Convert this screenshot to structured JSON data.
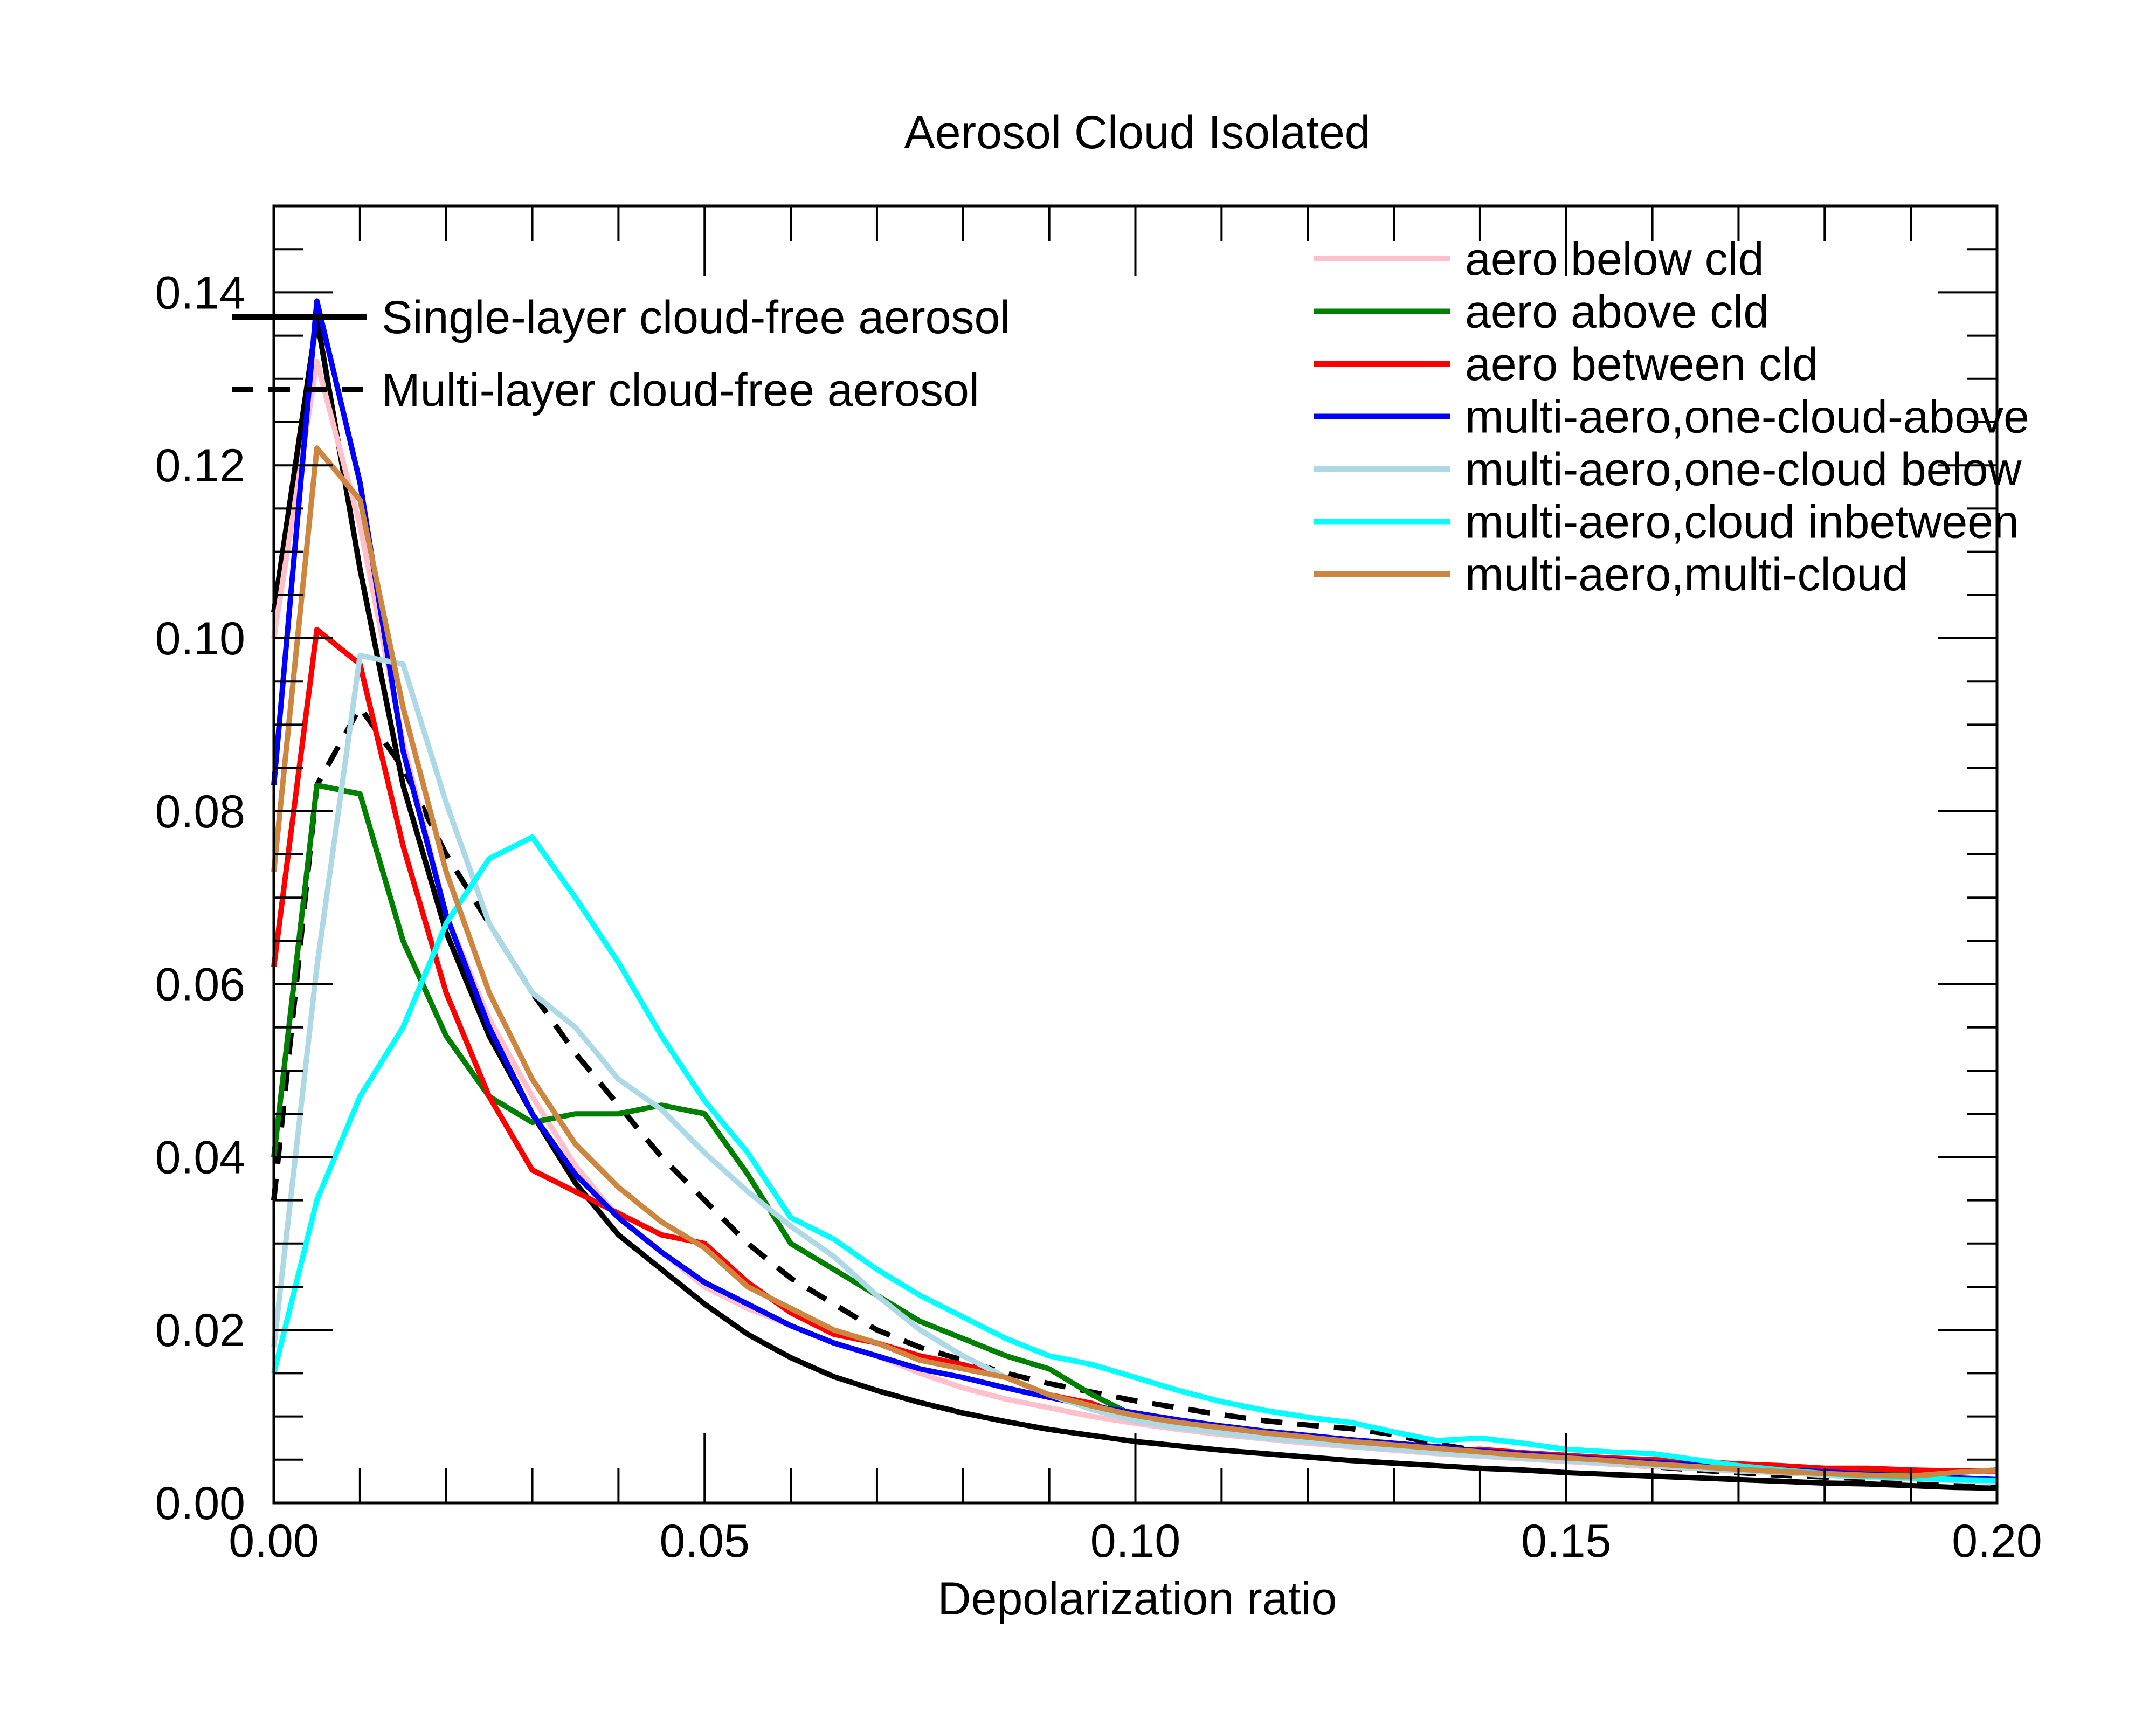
{
  "chart_data": {
    "type": "line",
    "title": "Aerosol Cloud Isolated",
    "xlabel": "Depolarization ratio",
    "ylabel": "",
    "xlim": [
      0,
      0.2
    ],
    "ylim": [
      0,
      0.15
    ],
    "xticks": [
      "0.00",
      "0.05",
      "0.10",
      "0.15",
      "0.20"
    ],
    "yticks": [
      "0.00",
      "0.02",
      "0.04",
      "0.06",
      "0.08",
      "0.10",
      "0.12",
      "0.14"
    ],
    "grid": false,
    "legends": {
      "left": [
        {
          "label": "Single-layer cloud-free aerosol",
          "series": 0
        },
        {
          "label": "Multi-layer cloud-free aerosol",
          "series": 1
        }
      ],
      "right": [
        {
          "label": "aero below cld",
          "series": 2
        },
        {
          "label": "aero above cld",
          "series": 3
        },
        {
          "label": "aero between cld",
          "series": 4
        },
        {
          "label": "multi-aero,one-cloud-above",
          "series": 5
        },
        {
          "label": "multi-aero,one-cloud below",
          "series": 6
        },
        {
          "label": "multi-aero,cloud inbetween",
          "series": 7
        },
        {
          "label": "multi-aero,multi-cloud",
          "series": 8
        }
      ]
    },
    "series": [
      {
        "name": "Single-layer cloud-free aerosol",
        "color": "#000000",
        "dash": "solid",
        "x": [
          0.0,
          0.005,
          0.01,
          0.015,
          0.02,
          0.025,
          0.03,
          0.035,
          0.04,
          0.045,
          0.05,
          0.055,
          0.06,
          0.065,
          0.07,
          0.075,
          0.08,
          0.085,
          0.09,
          0.095,
          0.1,
          0.105,
          0.11,
          0.115,
          0.12,
          0.125,
          0.13,
          0.135,
          0.14,
          0.145,
          0.15,
          0.155,
          0.16,
          0.165,
          0.17,
          0.175,
          0.18,
          0.185,
          0.19,
          0.195,
          0.2
        ],
        "y": [
          0.103,
          0.137,
          0.108,
          0.083,
          0.066,
          0.054,
          0.045,
          0.037,
          0.031,
          0.027,
          0.023,
          0.0195,
          0.0168,
          0.0146,
          0.013,
          0.0116,
          0.0104,
          0.0094,
          0.0085,
          0.0078,
          0.0071,
          0.0066,
          0.0061,
          0.0057,
          0.0053,
          0.0049,
          0.0046,
          0.0043,
          0.004,
          0.0038,
          0.0035,
          0.0033,
          0.0031,
          0.0029,
          0.0027,
          0.0025,
          0.0023,
          0.0022,
          0.002,
          0.0018,
          0.0017
        ]
      },
      {
        "name": "Multi-layer cloud-free aerosol",
        "color": "#000000",
        "dash": "dashed",
        "x": [
          0.0,
          0.005,
          0.01,
          0.015,
          0.02,
          0.025,
          0.03,
          0.035,
          0.04,
          0.045,
          0.05,
          0.055,
          0.06,
          0.065,
          0.07,
          0.075,
          0.08,
          0.085,
          0.09,
          0.095,
          0.1,
          0.105,
          0.11,
          0.115,
          0.12,
          0.125,
          0.13,
          0.135,
          0.14,
          0.145,
          0.15,
          0.155,
          0.16,
          0.165,
          0.17,
          0.175,
          0.18,
          0.185,
          0.19,
          0.195,
          0.2
        ],
        "y": [
          0.035,
          0.083,
          0.092,
          0.085,
          0.075,
          0.067,
          0.059,
          0.052,
          0.046,
          0.04,
          0.035,
          0.03,
          0.026,
          0.023,
          0.02,
          0.018,
          0.0165,
          0.015,
          0.0138,
          0.0128,
          0.0118,
          0.011,
          0.0102,
          0.0095,
          0.009,
          0.0086,
          0.0079,
          0.0068,
          0.006,
          0.0055,
          0.005,
          0.0045,
          0.0042,
          0.0038,
          0.0035,
          0.0032,
          0.003,
          0.0028,
          0.0026,
          0.0024,
          0.0022
        ]
      },
      {
        "name": "aero below cld",
        "color": "#ffc0cb",
        "dash": "solid",
        "x": [
          0.0,
          0.005,
          0.01,
          0.015,
          0.02,
          0.025,
          0.03,
          0.035,
          0.04,
          0.045,
          0.05,
          0.055,
          0.06,
          0.065,
          0.07,
          0.075,
          0.08,
          0.085,
          0.09,
          0.095,
          0.1,
          0.105,
          0.11,
          0.115,
          0.12,
          0.125,
          0.13,
          0.135,
          0.14,
          0.145,
          0.15,
          0.155,
          0.16,
          0.165,
          0.17,
          0.175,
          0.18,
          0.185,
          0.19,
          0.195,
          0.2
        ],
        "y": [
          0.1,
          0.132,
          0.113,
          0.088,
          0.068,
          0.056,
          0.047,
          0.039,
          0.033,
          0.029,
          0.025,
          0.0225,
          0.0205,
          0.0185,
          0.017,
          0.015,
          0.0133,
          0.012,
          0.011,
          0.01,
          0.0092,
          0.0085,
          0.0079,
          0.0074,
          0.0069,
          0.0065,
          0.0061,
          0.0057,
          0.0054,
          0.0051,
          0.0048,
          0.0045,
          0.0042,
          0.004,
          0.0037,
          0.0035,
          0.0033,
          0.0031,
          0.0029,
          0.0027,
          0.0025
        ]
      },
      {
        "name": "aero above cld",
        "color": "#008000",
        "dash": "solid",
        "x": [
          0.0,
          0.005,
          0.01,
          0.015,
          0.02,
          0.025,
          0.03,
          0.035,
          0.04,
          0.045,
          0.05,
          0.055,
          0.06,
          0.065,
          0.07,
          0.075,
          0.08,
          0.085,
          0.09,
          0.095,
          0.1,
          0.105,
          0.11,
          0.115,
          0.12,
          0.125,
          0.13,
          0.135,
          0.14,
          0.145,
          0.15,
          0.155,
          0.16,
          0.165,
          0.17,
          0.175,
          0.18,
          0.185,
          0.19,
          0.195,
          0.2
        ],
        "y": [
          0.04,
          0.083,
          0.082,
          0.065,
          0.054,
          0.047,
          0.044,
          0.045,
          0.045,
          0.046,
          0.045,
          0.038,
          0.03,
          0.027,
          0.024,
          0.021,
          0.019,
          0.017,
          0.0155,
          0.0125,
          0.01,
          0.0088,
          0.0082,
          0.0076,
          0.0072,
          0.0068,
          0.0064,
          0.006,
          0.0057,
          0.0054,
          0.005,
          0.0047,
          0.0044,
          0.0042,
          0.004,
          0.0038,
          0.0036,
          0.0034,
          0.0033,
          0.0035,
          0.0038
        ]
      },
      {
        "name": "aero between cld",
        "color": "#ff0000",
        "dash": "solid",
        "x": [
          0.0,
          0.005,
          0.01,
          0.015,
          0.02,
          0.025,
          0.03,
          0.035,
          0.04,
          0.045,
          0.05,
          0.055,
          0.06,
          0.065,
          0.07,
          0.075,
          0.08,
          0.085,
          0.09,
          0.095,
          0.1,
          0.105,
          0.11,
          0.115,
          0.12,
          0.125,
          0.13,
          0.135,
          0.14,
          0.145,
          0.15,
          0.155,
          0.16,
          0.165,
          0.17,
          0.175,
          0.18,
          0.185,
          0.19,
          0.195,
          0.2
        ],
        "y": [
          0.062,
          0.101,
          0.097,
          0.076,
          0.059,
          0.047,
          0.0385,
          0.036,
          0.0335,
          0.031,
          0.03,
          0.0255,
          0.022,
          0.0195,
          0.0185,
          0.017,
          0.016,
          0.0145,
          0.0125,
          0.0115,
          0.0095,
          0.0088,
          0.0082,
          0.0076,
          0.0072,
          0.0068,
          0.0064,
          0.006,
          0.0062,
          0.0058,
          0.0055,
          0.0052,
          0.005,
          0.0048,
          0.0045,
          0.0043,
          0.004,
          0.004,
          0.0038,
          0.0037,
          0.0037
        ]
      },
      {
        "name": "multi-aero,one-cloud-above",
        "color": "#0000ff",
        "dash": "solid",
        "x": [
          0.0,
          0.005,
          0.01,
          0.015,
          0.02,
          0.025,
          0.03,
          0.035,
          0.04,
          0.045,
          0.05,
          0.055,
          0.06,
          0.065,
          0.07,
          0.075,
          0.08,
          0.085,
          0.09,
          0.095,
          0.1,
          0.105,
          0.11,
          0.115,
          0.12,
          0.125,
          0.13,
          0.135,
          0.14,
          0.145,
          0.15,
          0.155,
          0.16,
          0.165,
          0.17,
          0.175,
          0.18,
          0.185,
          0.19,
          0.195,
          0.2
        ],
        "y": [
          0.083,
          0.139,
          0.118,
          0.087,
          0.068,
          0.055,
          0.045,
          0.038,
          0.033,
          0.029,
          0.0255,
          0.023,
          0.0205,
          0.0185,
          0.017,
          0.0155,
          0.0145,
          0.0133,
          0.0122,
          0.0112,
          0.0104,
          0.0096,
          0.0089,
          0.0083,
          0.0078,
          0.0073,
          0.0069,
          0.0065,
          0.006,
          0.0057,
          0.0053,
          0.005,
          0.0047,
          0.0044,
          0.0041,
          0.0038,
          0.0036,
          0.0033,
          0.0031,
          0.0029,
          0.0027
        ]
      },
      {
        "name": "multi-aero,one-cloud below",
        "color": "#add8e6",
        "dash": "solid",
        "x": [
          0.0,
          0.005,
          0.01,
          0.015,
          0.02,
          0.025,
          0.03,
          0.035,
          0.04,
          0.045,
          0.05,
          0.055,
          0.06,
          0.065,
          0.07,
          0.075,
          0.08,
          0.085,
          0.09,
          0.095,
          0.1,
          0.105,
          0.11,
          0.115,
          0.12,
          0.125,
          0.13,
          0.135,
          0.14,
          0.145,
          0.15,
          0.155,
          0.16,
          0.165,
          0.17,
          0.175,
          0.18,
          0.185,
          0.19,
          0.195,
          0.2
        ],
        "y": [
          0.018,
          0.062,
          0.098,
          0.097,
          0.081,
          0.067,
          0.059,
          0.055,
          0.049,
          0.0455,
          0.0405,
          0.036,
          0.032,
          0.0285,
          0.024,
          0.02,
          0.017,
          0.0145,
          0.0125,
          0.0108,
          0.0095,
          0.0087,
          0.0081,
          0.0075,
          0.0071,
          0.0066,
          0.0062,
          0.0058,
          0.0055,
          0.0052,
          0.0049,
          0.0046,
          0.0043,
          0.004,
          0.0037,
          0.0035,
          0.0032,
          0.003,
          0.0028,
          0.0026,
          0.0024
        ]
      },
      {
        "name": "multi-aero,cloud inbetween",
        "color": "#00ffff",
        "dash": "solid",
        "x": [
          0.0,
          0.005,
          0.01,
          0.015,
          0.02,
          0.025,
          0.03,
          0.035,
          0.04,
          0.045,
          0.05,
          0.055,
          0.06,
          0.065,
          0.07,
          0.075,
          0.08,
          0.085,
          0.09,
          0.095,
          0.1,
          0.105,
          0.11,
          0.115,
          0.12,
          0.125,
          0.13,
          0.135,
          0.14,
          0.145,
          0.15,
          0.155,
          0.16,
          0.165,
          0.17,
          0.175,
          0.18,
          0.185,
          0.19,
          0.195,
          0.2
        ],
        "y": [
          0.015,
          0.035,
          0.047,
          0.055,
          0.067,
          0.0745,
          0.077,
          0.07,
          0.0625,
          0.054,
          0.0465,
          0.0405,
          0.033,
          0.0305,
          0.027,
          0.024,
          0.0215,
          0.019,
          0.017,
          0.016,
          0.0145,
          0.013,
          0.0117,
          0.0107,
          0.0099,
          0.0093,
          0.0082,
          0.0072,
          0.0075,
          0.0069,
          0.0062,
          0.0059,
          0.0057,
          0.005,
          0.0043,
          0.0038,
          0.0034,
          0.0031,
          0.0029,
          0.0027,
          0.0026
        ]
      },
      {
        "name": "multi-aero,multi-cloud",
        "color": "#cd853f",
        "dash": "solid",
        "x": [
          0.0,
          0.005,
          0.01,
          0.015,
          0.02,
          0.025,
          0.03,
          0.035,
          0.04,
          0.045,
          0.05,
          0.055,
          0.06,
          0.065,
          0.07,
          0.075,
          0.08,
          0.085,
          0.09,
          0.095,
          0.1,
          0.105,
          0.11,
          0.115,
          0.12,
          0.125,
          0.13,
          0.135,
          0.14,
          0.145,
          0.15,
          0.155,
          0.16,
          0.165,
          0.17,
          0.175,
          0.18,
          0.185,
          0.19,
          0.195,
          0.2
        ],
        "y": [
          0.073,
          0.122,
          0.116,
          0.092,
          0.073,
          0.059,
          0.049,
          0.0415,
          0.0365,
          0.0325,
          0.0295,
          0.025,
          0.0225,
          0.02,
          0.0185,
          0.0165,
          0.0155,
          0.0145,
          0.0125,
          0.0112,
          0.0101,
          0.0093,
          0.0087,
          0.0081,
          0.0076,
          0.0071,
          0.0067,
          0.0063,
          0.0059,
          0.0055,
          0.0052,
          0.0049,
          0.0045,
          0.0042,
          0.0039,
          0.0036,
          0.0034,
          0.0032,
          0.0031,
          0.0035,
          0.0038
        ]
      }
    ]
  }
}
